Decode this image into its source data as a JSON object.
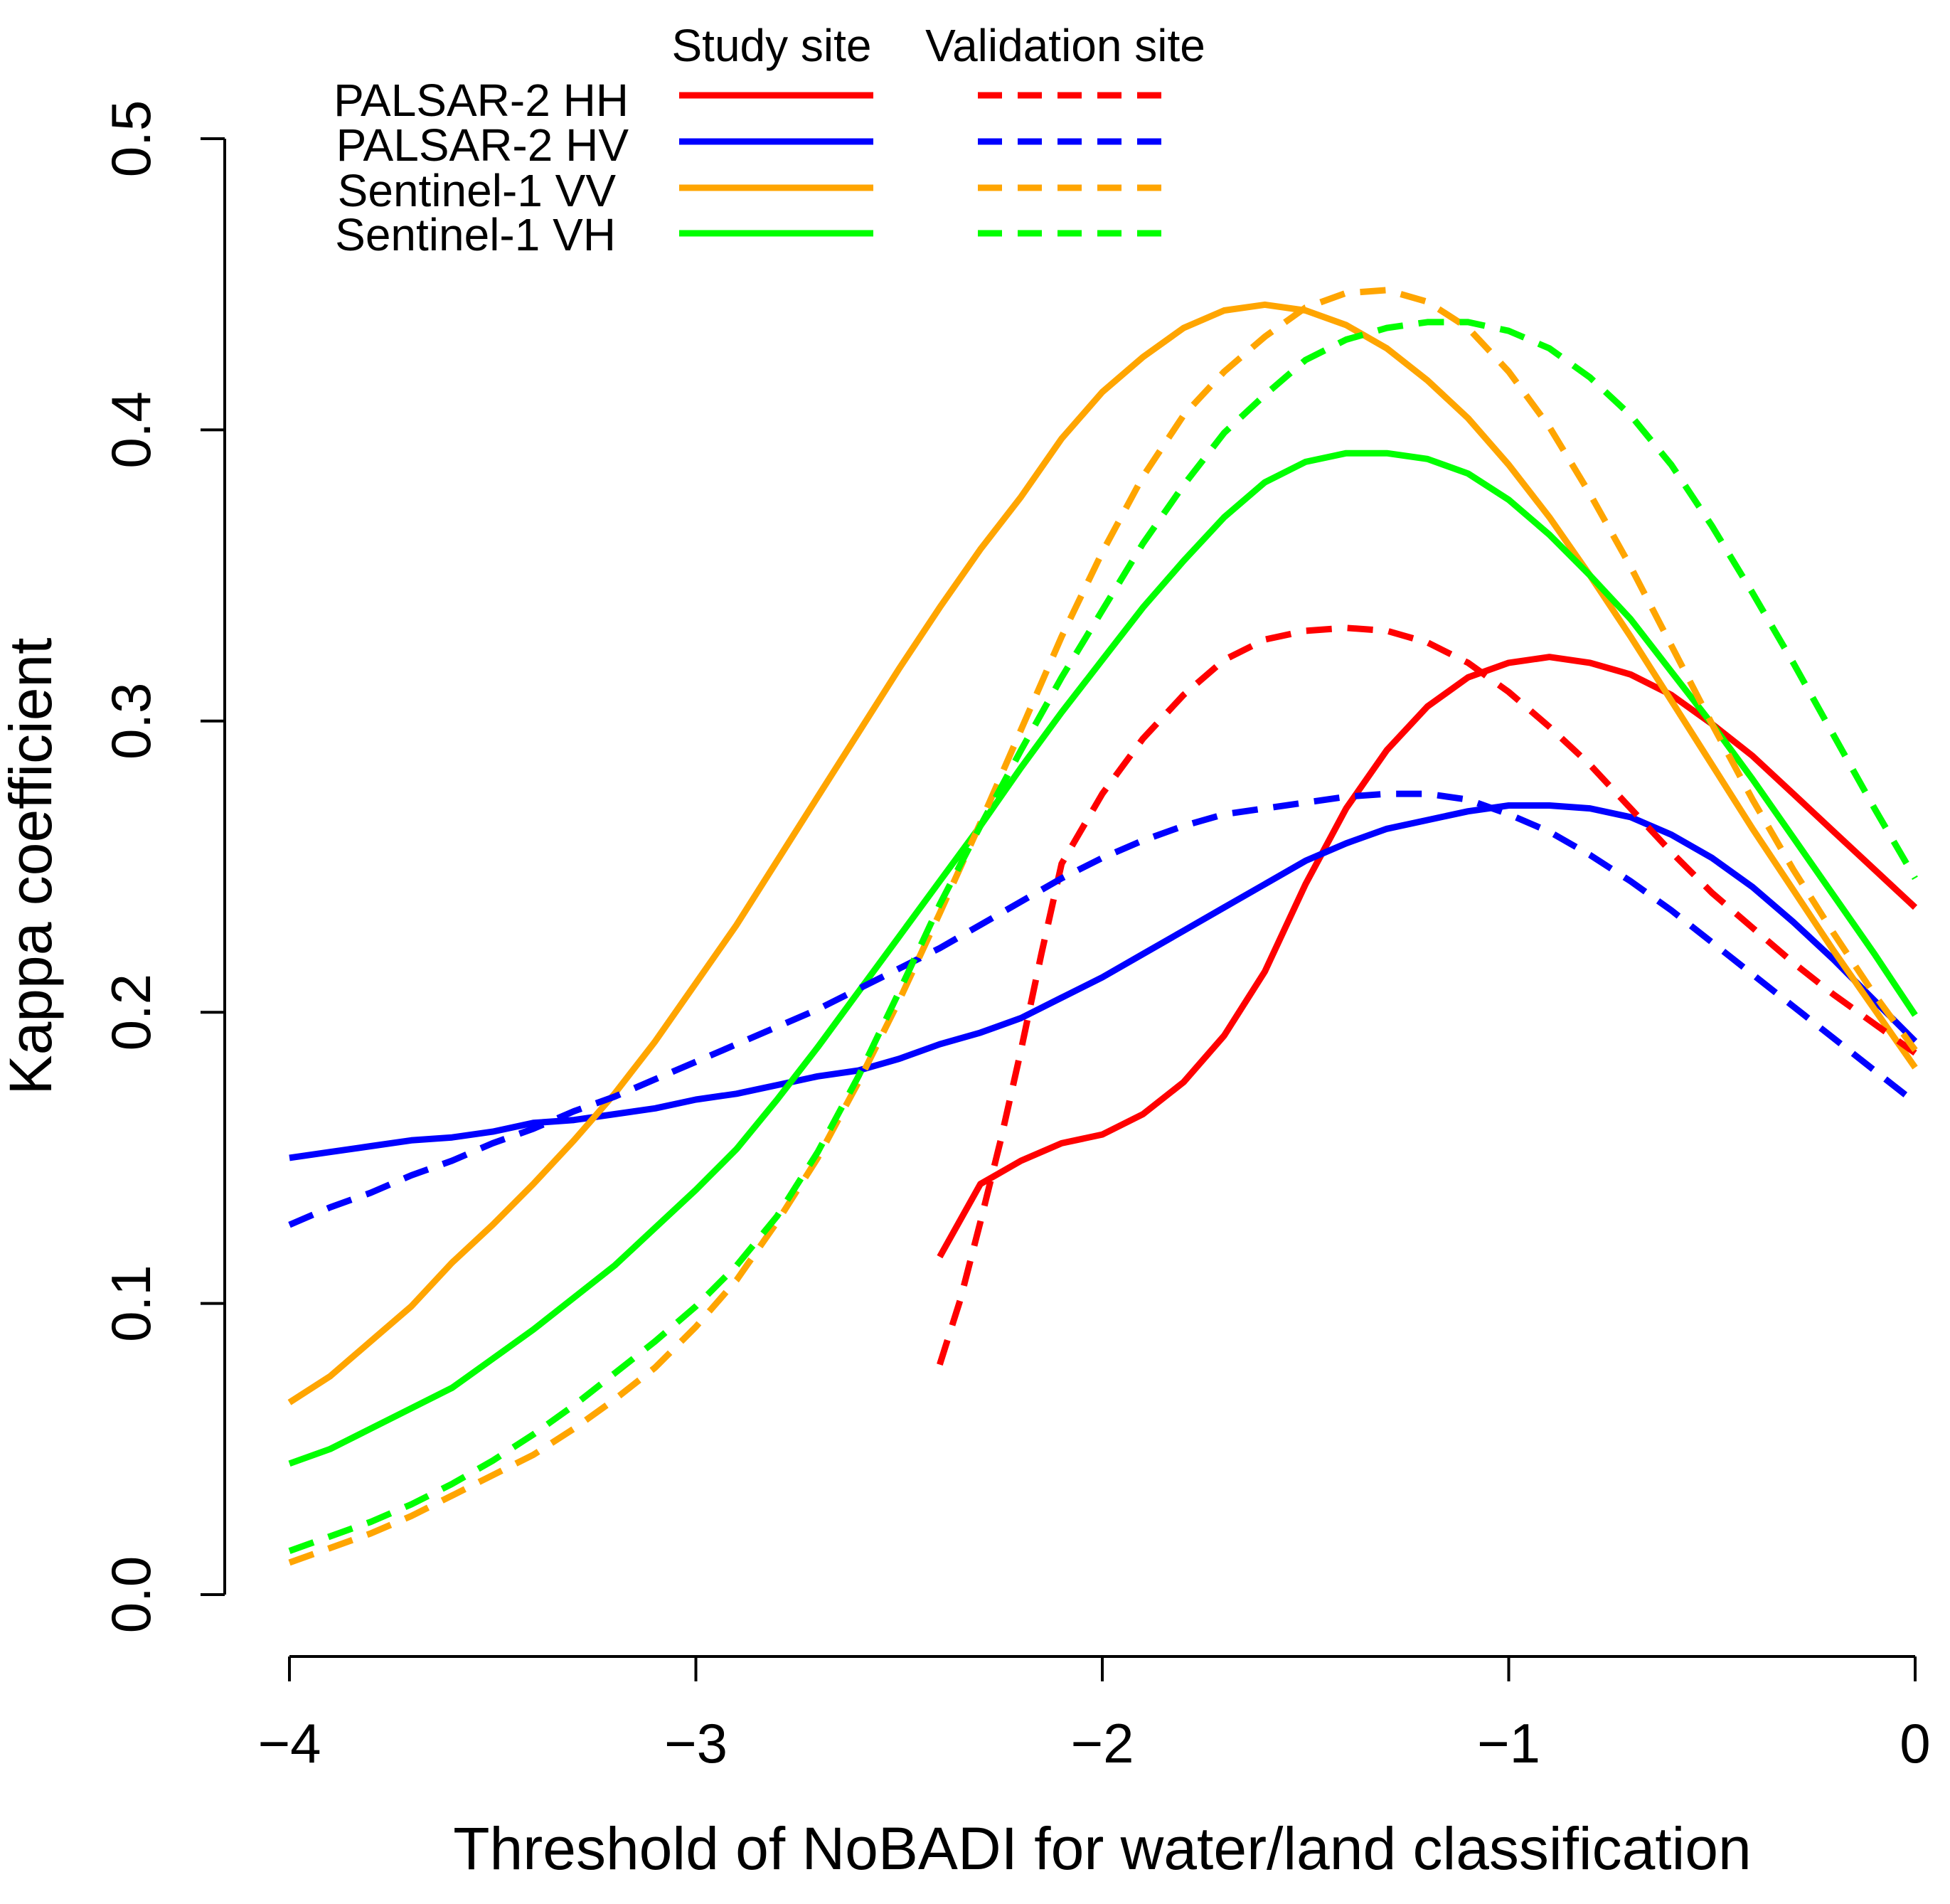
{
  "chart_data": {
    "type": "line",
    "title": "",
    "xlabel": "Threshold of NoBADI for water/land classification",
    "ylabel": "Kappa coefficient",
    "xlim": [
      -4,
      0
    ],
    "ylim": [
      0,
      0.5
    ],
    "xticks": [
      -4,
      -3,
      -2,
      -1,
      0
    ],
    "xtick_labels": [
      "−4",
      "−3",
      "−2",
      "−1",
      "0"
    ],
    "yticks": [
      0,
      0.1,
      0.2,
      0.3,
      0.4,
      0.5
    ],
    "ytick_labels": [
      "0.0",
      "0.1",
      "0.2",
      "0.3",
      "0.4",
      "0.5"
    ],
    "grid": false,
    "legend": {
      "placement": "top-left",
      "column_headers": [
        "Study site",
        "Validation site"
      ],
      "entries": [
        "PALSAR-2 HH",
        "PALSAR-2 HV",
        "Sentinel-1 VV",
        "Sentinel-1 VH"
      ]
    },
    "series": [
      {
        "name": "PALSAR-2 HH",
        "site": "Study site",
        "color": "#ff0000",
        "dash": "solid",
        "x": [
          -2.4,
          -2.3,
          -2.2,
          -2.1,
          -2.0,
          -1.9,
          -1.8,
          -1.7,
          -1.6,
          -1.5,
          -1.4,
          -1.3,
          -1.2,
          -1.1,
          -1.0,
          -0.9,
          -0.8,
          -0.7,
          -0.6,
          -0.5,
          -0.4,
          -0.3,
          -0.2,
          -0.1,
          0.0
        ],
        "y": [
          0.116,
          0.141,
          0.149,
          0.155,
          0.158,
          0.165,
          0.176,
          0.192,
          0.214,
          0.244,
          0.27,
          0.29,
          0.305,
          0.315,
          0.32,
          0.322,
          0.32,
          0.316,
          0.309,
          0.299,
          0.288,
          0.275,
          0.262,
          0.249,
          0.236
        ]
      },
      {
        "name": "PALSAR-2 HV",
        "site": "Study site",
        "color": "#0000ff",
        "dash": "solid",
        "x": [
          -4.0,
          -3.9,
          -3.8,
          -3.7,
          -3.6,
          -3.5,
          -3.4,
          -3.3,
          -3.2,
          -3.1,
          -3.0,
          -2.9,
          -2.8,
          -2.7,
          -2.6,
          -2.5,
          -2.4,
          -2.3,
          -2.2,
          -2.1,
          -2.0,
          -1.9,
          -1.8,
          -1.7,
          -1.6,
          -1.5,
          -1.4,
          -1.3,
          -1.2,
          -1.1,
          -1.0,
          -0.9,
          -0.8,
          -0.7,
          -0.6,
          -0.5,
          -0.4,
          -0.3,
          -0.2,
          -0.1,
          0.0
        ],
        "y": [
          0.15,
          0.152,
          0.154,
          0.156,
          0.157,
          0.159,
          0.162,
          0.163,
          0.165,
          0.167,
          0.17,
          0.172,
          0.175,
          0.178,
          0.18,
          0.184,
          0.189,
          0.193,
          0.198,
          0.205,
          0.212,
          0.22,
          0.228,
          0.236,
          0.244,
          0.252,
          0.258,
          0.263,
          0.266,
          0.269,
          0.271,
          0.271,
          0.27,
          0.267,
          0.261,
          0.253,
          0.243,
          0.231,
          0.218,
          0.204,
          0.19
        ]
      },
      {
        "name": "Sentinel-1 VV",
        "site": "Study site",
        "color": "#ffa500",
        "dash": "solid",
        "x": [
          -4.0,
          -3.9,
          -3.8,
          -3.7,
          -3.6,
          -3.5,
          -3.4,
          -3.3,
          -3.2,
          -3.1,
          -3.0,
          -2.9,
          -2.8,
          -2.7,
          -2.6,
          -2.5,
          -2.4,
          -2.3,
          -2.2,
          -2.1,
          -2.0,
          -1.9,
          -1.8,
          -1.7,
          -1.6,
          -1.5,
          -1.4,
          -1.3,
          -1.2,
          -1.1,
          -1.0,
          -0.9,
          -0.8,
          -0.7,
          -0.6,
          -0.5,
          -0.4,
          -0.3,
          -0.2,
          -0.1,
          0.0
        ],
        "y": [
          0.066,
          0.075,
          0.087,
          0.099,
          0.114,
          0.127,
          0.141,
          0.156,
          0.172,
          0.19,
          0.21,
          0.23,
          0.252,
          0.274,
          0.296,
          0.318,
          0.339,
          0.359,
          0.377,
          0.397,
          0.413,
          0.425,
          0.435,
          0.441,
          0.443,
          0.441,
          0.436,
          0.428,
          0.417,
          0.404,
          0.388,
          0.37,
          0.35,
          0.329,
          0.307,
          0.285,
          0.263,
          0.242,
          0.221,
          0.201,
          0.181
        ]
      },
      {
        "name": "Sentinel-1 VH",
        "site": "Study site",
        "color": "#00ff00",
        "dash": "solid",
        "x": [
          -4.0,
          -3.9,
          -3.8,
          -3.7,
          -3.6,
          -3.5,
          -3.4,
          -3.3,
          -3.2,
          -3.1,
          -3.0,
          -2.9,
          -2.8,
          -2.7,
          -2.6,
          -2.5,
          -2.4,
          -2.3,
          -2.2,
          -2.1,
          -2.0,
          -1.9,
          -1.8,
          -1.7,
          -1.6,
          -1.5,
          -1.4,
          -1.3,
          -1.2,
          -1.1,
          -1.0,
          -0.9,
          -0.8,
          -0.7,
          -0.6,
          -0.5,
          -0.4,
          -0.3,
          -0.2,
          -0.1,
          0.0
        ],
        "y": [
          0.045,
          0.05,
          0.057,
          0.064,
          0.071,
          0.081,
          0.091,
          0.102,
          0.113,
          0.126,
          0.139,
          0.153,
          0.17,
          0.188,
          0.207,
          0.226,
          0.245,
          0.264,
          0.284,
          0.303,
          0.321,
          0.339,
          0.355,
          0.37,
          0.382,
          0.389,
          0.392,
          0.392,
          0.39,
          0.385,
          0.376,
          0.364,
          0.35,
          0.335,
          0.317,
          0.299,
          0.28,
          0.26,
          0.24,
          0.22,
          0.199
        ]
      },
      {
        "name": "PALSAR-2 HH",
        "site": "Validation site",
        "color": "#ff0000",
        "dash": "dashed",
        "x": [
          -2.4,
          -2.35,
          -2.3,
          -2.25,
          -2.2,
          -2.15,
          -2.1,
          -2.0,
          -1.9,
          -1.8,
          -1.7,
          -1.6,
          -1.5,
          -1.4,
          -1.3,
          -1.2,
          -1.1,
          -1.0,
          -0.9,
          -0.8,
          -0.7,
          -0.6,
          -0.5,
          -0.4,
          -0.3,
          -0.2,
          -0.1,
          0.0
        ],
        "y": [
          0.079,
          0.101,
          0.128,
          0.156,
          0.187,
          0.22,
          0.251,
          0.275,
          0.294,
          0.309,
          0.321,
          0.328,
          0.331,
          0.332,
          0.331,
          0.327,
          0.32,
          0.31,
          0.298,
          0.285,
          0.27,
          0.255,
          0.241,
          0.229,
          0.217,
          0.206,
          0.196,
          0.186
        ]
      },
      {
        "name": "PALSAR-2 HV",
        "site": "Validation site",
        "color": "#0000ff",
        "dash": "dashed",
        "x": [
          -4.0,
          -3.9,
          -3.8,
          -3.7,
          -3.6,
          -3.5,
          -3.4,
          -3.3,
          -3.2,
          -3.1,
          -3.0,
          -2.9,
          -2.8,
          -2.7,
          -2.6,
          -2.5,
          -2.4,
          -2.3,
          -2.2,
          -2.1,
          -2.0,
          -1.9,
          -1.8,
          -1.7,
          -1.6,
          -1.5,
          -1.4,
          -1.3,
          -1.2,
          -1.1,
          -1.0,
          -0.9,
          -0.8,
          -0.7,
          -0.6,
          -0.5,
          -0.4,
          -0.3,
          -0.2,
          -0.1,
          0.0
        ],
        "y": [
          0.127,
          0.133,
          0.138,
          0.144,
          0.149,
          0.155,
          0.16,
          0.166,
          0.171,
          0.177,
          0.183,
          0.189,
          0.195,
          0.201,
          0.208,
          0.215,
          0.222,
          0.23,
          0.238,
          0.246,
          0.253,
          0.259,
          0.264,
          0.268,
          0.27,
          0.272,
          0.274,
          0.275,
          0.275,
          0.273,
          0.268,
          0.262,
          0.254,
          0.245,
          0.235,
          0.224,
          0.213,
          0.202,
          0.191,
          0.18,
          0.169
        ]
      },
      {
        "name": "Sentinel-1 VV",
        "site": "Validation site",
        "color": "#ffa500",
        "dash": "dashed",
        "x": [
          -4.0,
          -3.9,
          -3.8,
          -3.7,
          -3.6,
          -3.5,
          -3.4,
          -3.3,
          -3.2,
          -3.1,
          -3.0,
          -2.9,
          -2.8,
          -2.7,
          -2.6,
          -2.5,
          -2.4,
          -2.3,
          -2.2,
          -2.1,
          -2.0,
          -1.9,
          -1.8,
          -1.7,
          -1.6,
          -1.5,
          -1.4,
          -1.3,
          -1.2,
          -1.1,
          -1.0,
          -0.9,
          -0.8,
          -0.7,
          -0.6,
          -0.5,
          -0.4,
          -0.3,
          -0.2,
          -0.1,
          0.0
        ],
        "y": [
          0.011,
          0.016,
          0.021,
          0.027,
          0.034,
          0.041,
          0.048,
          0.057,
          0.067,
          0.078,
          0.092,
          0.108,
          0.128,
          0.15,
          0.176,
          0.204,
          0.234,
          0.265,
          0.297,
          0.329,
          0.358,
          0.384,
          0.405,
          0.42,
          0.432,
          0.442,
          0.447,
          0.448,
          0.444,
          0.435,
          0.42,
          0.401,
          0.378,
          0.353,
          0.326,
          0.299,
          0.273,
          0.249,
          0.227,
          0.206,
          0.187
        ]
      },
      {
        "name": "Sentinel-1 VH",
        "site": "Validation site",
        "color": "#00ff00",
        "dash": "dashed",
        "x": [
          -4.0,
          -3.9,
          -3.8,
          -3.7,
          -3.6,
          -3.5,
          -3.4,
          -3.3,
          -3.2,
          -3.1,
          -3.0,
          -2.9,
          -2.8,
          -2.7,
          -2.6,
          -2.5,
          -2.4,
          -2.3,
          -2.2,
          -2.1,
          -2.0,
          -1.9,
          -1.8,
          -1.7,
          -1.6,
          -1.5,
          -1.4,
          -1.3,
          -1.2,
          -1.1,
          -1.0,
          -0.9,
          -0.8,
          -0.7,
          -0.6,
          -0.5,
          -0.4,
          -0.3,
          -0.2,
          -0.1,
          0.0
        ],
        "y": [
          0.015,
          0.02,
          0.025,
          0.031,
          0.038,
          0.046,
          0.055,
          0.065,
          0.076,
          0.087,
          0.099,
          0.113,
          0.13,
          0.152,
          0.178,
          0.207,
          0.237,
          0.264,
          0.29,
          0.315,
          0.338,
          0.361,
          0.381,
          0.399,
          0.412,
          0.424,
          0.431,
          0.435,
          0.437,
          0.437,
          0.434,
          0.428,
          0.418,
          0.405,
          0.388,
          0.367,
          0.344,
          0.32,
          0.295,
          0.27,
          0.246
        ]
      }
    ]
  }
}
